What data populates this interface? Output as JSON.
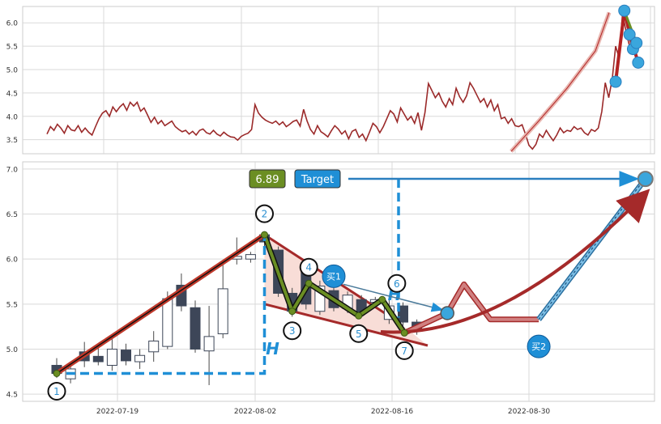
{
  "chart_data": [
    {
      "type": "line",
      "panel": "overview",
      "ylim": [
        3.2,
        6.35
      ],
      "y_ticks": [
        "3.5",
        "4.0",
        "4.5",
        "5.0",
        "5.5",
        "6.0"
      ],
      "grid": true,
      "line_color": "#9b2a2a",
      "series": [
        {
          "values": [
            3.62,
            3.78,
            3.7,
            3.83,
            3.75,
            3.64,
            3.8,
            3.71,
            3.69,
            3.8,
            3.66,
            3.75,
            3.66,
            3.6,
            3.78,
            3.95,
            4.07,
            4.12,
            4.0,
            4.2,
            4.1,
            4.2,
            4.27,
            4.13,
            4.3,
            4.22,
            4.3,
            4.11,
            4.18,
            4.03,
            3.87,
            3.98,
            3.84,
            3.91,
            3.8,
            3.85,
            3.9,
            3.78,
            3.72,
            3.67,
            3.7,
            3.62,
            3.68,
            3.6,
            3.7,
            3.73,
            3.65,
            3.62,
            3.7,
            3.62,
            3.58,
            3.66,
            3.6,
            3.56,
            3.55,
            3.49,
            3.57,
            3.61,
            3.64,
            3.72,
            4.25,
            4.07,
            3.98,
            3.92,
            3.88,
            3.85,
            3.9,
            3.82,
            3.88,
            3.78,
            3.83,
            3.89,
            3.92,
            3.79,
            4.15,
            3.9,
            3.72,
            3.62,
            3.8,
            3.67,
            3.62,
            3.56,
            3.69,
            3.8,
            3.73,
            3.62,
            3.69,
            3.52,
            3.68,
            3.72,
            3.55,
            3.62,
            3.48,
            3.66,
            3.85,
            3.78,
            3.65,
            3.78,
            3.95,
            4.12,
            4.05,
            3.88,
            4.18,
            4.05,
            3.92,
            4.0,
            3.85,
            4.08,
            3.7,
            4.08,
            4.7,
            4.55,
            4.4,
            4.5,
            4.32,
            4.2,
            4.38,
            4.25,
            4.6,
            4.42,
            4.3,
            4.44,
            4.72,
            4.6,
            4.45,
            4.3,
            4.38,
            4.2,
            4.35,
            4.12,
            4.25,
            3.95,
            3.98,
            3.85,
            3.95,
            3.8,
            3.78,
            3.82,
            3.62,
            3.38,
            3.3,
            3.4,
            3.62,
            3.55,
            3.7,
            3.58,
            3.48,
            3.6,
            3.75,
            3.65,
            3.7,
            3.68,
            3.78,
            3.72,
            3.75,
            3.65,
            3.6,
            3.72,
            3.68,
            3.75,
            4.1,
            4.72,
            4.4,
            4.8,
            5.5,
            5.25,
            6.22,
            5.8,
            5.5,
            5.6,
            5.18,
            5.1
          ]
        },
        {
          "values": [
            3.25,
            3.9,
            4.6,
            5.4,
            6.22
          ],
          "color": "#b22222"
        }
      ],
      "pattern_points": [
        {
          "x": 164,
          "y": 4.74,
          "color": "#3aa6dd"
        },
        {
          "x": 166.5,
          "y": 6.26,
          "color": "#3aa6dd"
        },
        {
          "x": 168,
          "y": 5.75,
          "color": "#3aa6dd"
        },
        {
          "x": 169,
          "y": 5.44,
          "color": "#3aa6dd"
        },
        {
          "x": 170,
          "y": 5.57,
          "color": "#3aa6dd"
        },
        {
          "x": 170.5,
          "y": 5.15,
          "color": "#3aa6dd"
        }
      ]
    },
    {
      "type": "candlestick",
      "panel": "detail",
      "ylim": [
        4.42,
        7.08
      ],
      "y_ticks": [
        "4.5",
        "5.0",
        "5.5",
        "6.0",
        "6.5",
        "7.0"
      ],
      "x_ticks": [
        "2022-07-19",
        "2022-08-02",
        "2022-08-16",
        "2022-08-30"
      ],
      "grid": true,
      "candles": [
        {
          "o": 4.73,
          "c": 4.82,
          "h": 4.9,
          "l": 4.68,
          "bear": true
        },
        {
          "o": 4.67,
          "c": 4.78,
          "h": 4.84,
          "l": 4.62,
          "bear": false
        },
        {
          "o": 4.87,
          "c": 4.97,
          "h": 5.08,
          "l": 4.8,
          "bear": true
        },
        {
          "o": 4.86,
          "c": 4.92,
          "h": 5.05,
          "l": 4.82,
          "bear": true
        },
        {
          "o": 4.82,
          "c": 5.0,
          "h": 5.12,
          "l": 4.76,
          "bear": false
        },
        {
          "o": 4.87,
          "c": 4.99,
          "h": 5.06,
          "l": 4.82,
          "bear": true
        },
        {
          "o": 4.86,
          "c": 4.93,
          "h": 5.0,
          "l": 4.78,
          "bear": false
        },
        {
          "o": 4.97,
          "c": 5.09,
          "h": 5.2,
          "l": 4.86,
          "bear": false
        },
        {
          "o": 5.03,
          "c": 5.56,
          "h": 5.64,
          "l": 5.0,
          "bear": false
        },
        {
          "o": 5.48,
          "c": 5.71,
          "h": 5.84,
          "l": 5.42,
          "bear": true
        },
        {
          "o": 5.0,
          "c": 5.46,
          "h": 5.54,
          "l": 4.96,
          "bear": true
        },
        {
          "o": 5.14,
          "c": 4.98,
          "h": 5.48,
          "l": 4.6,
          "bear": false
        },
        {
          "o": 5.17,
          "c": 5.67,
          "h": 5.94,
          "l": 5.12,
          "bear": false
        },
        {
          "o": 6.0,
          "c": 6.03,
          "h": 6.24,
          "l": 5.94,
          "bear": false
        },
        {
          "o": 6.05,
          "c": 6.0,
          "h": 6.08,
          "l": 5.96,
          "bear": false
        },
        {
          "o": 6.27,
          "c": 6.19,
          "h": 6.3,
          "l": 6.08,
          "bear": true
        },
        {
          "o": 6.1,
          "c": 5.62,
          "h": 6.14,
          "l": 5.58,
          "bear": true
        },
        {
          "o": 5.62,
          "c": 5.42,
          "h": 5.68,
          "l": 5.36,
          "bear": true
        },
        {
          "o": 5.9,
          "c": 5.5,
          "h": 5.96,
          "l": 5.44,
          "bear": true
        },
        {
          "o": 5.42,
          "c": 5.7,
          "h": 5.76,
          "l": 5.38,
          "bear": false
        },
        {
          "o": 5.65,
          "c": 5.46,
          "h": 5.68,
          "l": 5.42,
          "bear": true
        },
        {
          "o": 5.45,
          "c": 5.6,
          "h": 5.64,
          "l": 5.4,
          "bear": false
        },
        {
          "o": 5.55,
          "c": 5.4,
          "h": 5.6,
          "l": 5.38,
          "bear": true
        },
        {
          "o": 5.55,
          "c": 5.52,
          "h": 5.58,
          "l": 5.5,
          "bear": false
        },
        {
          "o": 5.48,
          "c": 5.33,
          "h": 5.55,
          "l": 5.28,
          "bear": false
        },
        {
          "o": 5.48,
          "c": 5.3,
          "h": 5.52,
          "l": 5.26,
          "bear": true
        },
        {
          "o": 5.3,
          "c": 5.2,
          "h": 5.33,
          "l": 5.16,
          "bear": true
        }
      ],
      "wave_points": [
        {
          "label": "1",
          "x": 0,
          "y": 4.73
        },
        {
          "label": "2",
          "x": 15,
          "y": 6.27
        },
        {
          "label": "3",
          "x": 17,
          "y": 5.42
        },
        {
          "label": "4",
          "x": 18.2,
          "y": 5.73
        },
        {
          "label": "5",
          "x": 21.8,
          "y": 5.37
        },
        {
          "label": "6",
          "x": 23.5,
          "y": 5.55
        },
        {
          "label": "7",
          "x": 25.1,
          "y": 5.18
        }
      ],
      "projection": [
        {
          "x": 25.1,
          "y": 5.18
        },
        {
          "x": 28.2,
          "y": 5.4
        },
        {
          "x": 29.4,
          "y": 5.72
        },
        {
          "x": 31.3,
          "y": 5.33
        },
        {
          "x": 34.8,
          "y": 5.33
        },
        {
          "x": 42.5,
          "y": 6.89
        }
      ],
      "buy_points": [
        {
          "label": "买1",
          "x": 20,
          "y": 5.81
        },
        {
          "label": "买2",
          "x": 34.8,
          "y": 5.03
        }
      ],
      "target_value": "6.89",
      "target_label": "Target",
      "height_label": "H",
      "point_labels": [
        "1",
        "2",
        "3",
        "4",
        "5",
        "6",
        "7"
      ],
      "colors": {
        "bull_body": "#ffffff",
        "bear_body": "#3d4658",
        "trend": "#c0392b",
        "wedge_fill": "#f7d9d3",
        "wedge_edge": "#a52a2a",
        "dash_blue": "#1f8fd6",
        "green": "#6b8e23",
        "price_badge": "#6b8e23",
        "target_badge": "#1f8fd6"
      }
    }
  ]
}
